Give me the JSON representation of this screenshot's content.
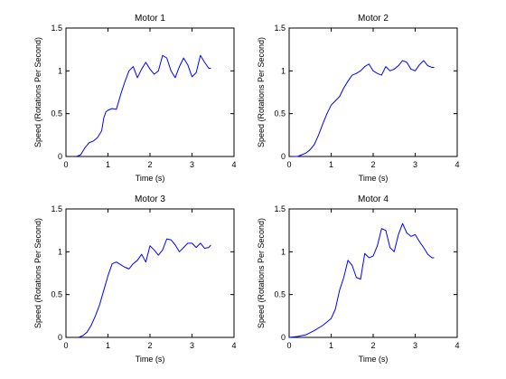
{
  "figure": {
    "background": "#ffffff",
    "line_color": "#0000ff",
    "axis_color": "#000000"
  },
  "chart_data": [
    {
      "type": "line",
      "title": "Motor 1",
      "xlabel": "Time (s)",
      "ylabel": "Speed (Rotations Per Second)",
      "xlim": [
        0,
        4
      ],
      "ylim": [
        0,
        1.5
      ],
      "xticks": [
        "0",
        "1",
        "2",
        "3",
        "4"
      ],
      "yticks": [
        "0",
        "0.5",
        "1",
        "1.5"
      ],
      "grid": false,
      "series": [
        {
          "name": "Motor 1",
          "x": [
            0.25,
            0.35,
            0.45,
            0.55,
            0.65,
            0.75,
            0.85,
            0.9,
            0.95,
            1.0,
            1.1,
            1.2,
            1.3,
            1.4,
            1.5,
            1.6,
            1.7,
            1.8,
            1.9,
            2.0,
            2.1,
            2.2,
            2.3,
            2.4,
            2.5,
            2.6,
            2.7,
            2.8,
            2.9,
            3.0,
            3.1,
            3.2,
            3.3,
            3.4,
            3.45
          ],
          "y": [
            0.0,
            0.02,
            0.1,
            0.16,
            0.18,
            0.22,
            0.3,
            0.45,
            0.52,
            0.54,
            0.56,
            0.55,
            0.72,
            0.87,
            1.0,
            1.05,
            0.92,
            1.02,
            1.1,
            1.02,
            0.96,
            1.0,
            1.18,
            1.15,
            1.0,
            0.92,
            1.05,
            1.15,
            1.07,
            0.93,
            0.98,
            1.18,
            1.1,
            1.03,
            1.03
          ]
        }
      ]
    },
    {
      "type": "line",
      "title": "Motor 2",
      "xlabel": "Time (s)",
      "ylabel": "Speed (Rotations Per Second)",
      "xlim": [
        0,
        4
      ],
      "ylim": [
        0,
        1.5
      ],
      "xticks": [
        "0",
        "1",
        "2",
        "3",
        "4"
      ],
      "yticks": [
        "0",
        "0.5",
        "1",
        "1.5"
      ],
      "grid": false,
      "series": [
        {
          "name": "Motor 2",
          "x": [
            0.1,
            0.2,
            0.3,
            0.4,
            0.5,
            0.6,
            0.7,
            0.8,
            0.9,
            1.0,
            1.1,
            1.2,
            1.3,
            1.4,
            1.5,
            1.6,
            1.7,
            1.8,
            1.9,
            2.0,
            2.1,
            2.2,
            2.3,
            2.4,
            2.5,
            2.6,
            2.7,
            2.8,
            2.9,
            3.0,
            3.1,
            3.2,
            3.3,
            3.4,
            3.45
          ],
          "y": [
            0.0,
            0.0,
            0.02,
            0.04,
            0.08,
            0.14,
            0.25,
            0.38,
            0.5,
            0.6,
            0.65,
            0.7,
            0.8,
            0.88,
            0.95,
            0.97,
            1.0,
            1.05,
            1.08,
            1.0,
            0.97,
            0.95,
            1.05,
            1.0,
            1.02,
            1.06,
            1.12,
            1.1,
            1.02,
            1.0,
            1.07,
            1.12,
            1.06,
            1.04,
            1.04
          ]
        }
      ]
    },
    {
      "type": "line",
      "title": "Motor 3",
      "xlabel": "Time (s)",
      "ylabel": "Speed (Rotations Per Second)",
      "xlim": [
        0,
        4
      ],
      "ylim": [
        0,
        1.5
      ],
      "xticks": [
        "0",
        "1",
        "2",
        "3",
        "4"
      ],
      "yticks": [
        "0",
        "0.5",
        "1",
        "1.5"
      ],
      "grid": false,
      "series": [
        {
          "name": "Motor 3",
          "x": [
            0.3,
            0.4,
            0.5,
            0.6,
            0.7,
            0.8,
            0.9,
            1.0,
            1.1,
            1.2,
            1.3,
            1.4,
            1.5,
            1.6,
            1.7,
            1.8,
            1.9,
            2.0,
            2.1,
            2.2,
            2.3,
            2.4,
            2.5,
            2.6,
            2.7,
            2.8,
            2.9,
            3.0,
            3.1,
            3.2,
            3.3,
            3.4,
            3.45
          ],
          "y": [
            0.0,
            0.02,
            0.06,
            0.14,
            0.25,
            0.38,
            0.55,
            0.72,
            0.86,
            0.88,
            0.85,
            0.82,
            0.8,
            0.86,
            0.9,
            0.97,
            0.88,
            1.07,
            1.02,
            0.96,
            1.02,
            1.15,
            1.14,
            1.08,
            1.0,
            1.05,
            1.1,
            1.1,
            1.05,
            1.1,
            1.04,
            1.05,
            1.08
          ]
        }
      ]
    },
    {
      "type": "line",
      "title": "Motor 4",
      "xlabel": "Time (s)",
      "ylabel": "Speed (Rotations Per Second)",
      "xlim": [
        0,
        4
      ],
      "ylim": [
        0,
        1.5
      ],
      "xticks": [
        "0",
        "1",
        "2",
        "3",
        "4"
      ],
      "yticks": [
        "0",
        "0.5",
        "1",
        "1.5"
      ],
      "grid": false,
      "series": [
        {
          "name": "Motor 4",
          "x": [
            0.0,
            0.2,
            0.4,
            0.6,
            0.8,
            1.0,
            1.1,
            1.2,
            1.3,
            1.4,
            1.5,
            1.6,
            1.7,
            1.8,
            1.9,
            2.0,
            2.1,
            2.2,
            2.3,
            2.4,
            2.5,
            2.6,
            2.7,
            2.8,
            2.9,
            3.0,
            3.1,
            3.2,
            3.3,
            3.4,
            3.45
          ],
          "y": [
            0.0,
            0.01,
            0.03,
            0.08,
            0.14,
            0.22,
            0.33,
            0.55,
            0.7,
            0.9,
            0.84,
            0.7,
            0.68,
            0.98,
            0.93,
            0.95,
            1.07,
            1.27,
            1.25,
            1.05,
            1.0,
            1.2,
            1.33,
            1.22,
            1.18,
            1.2,
            1.12,
            1.05,
            0.97,
            0.93,
            0.93
          ]
        }
      ]
    }
  ]
}
